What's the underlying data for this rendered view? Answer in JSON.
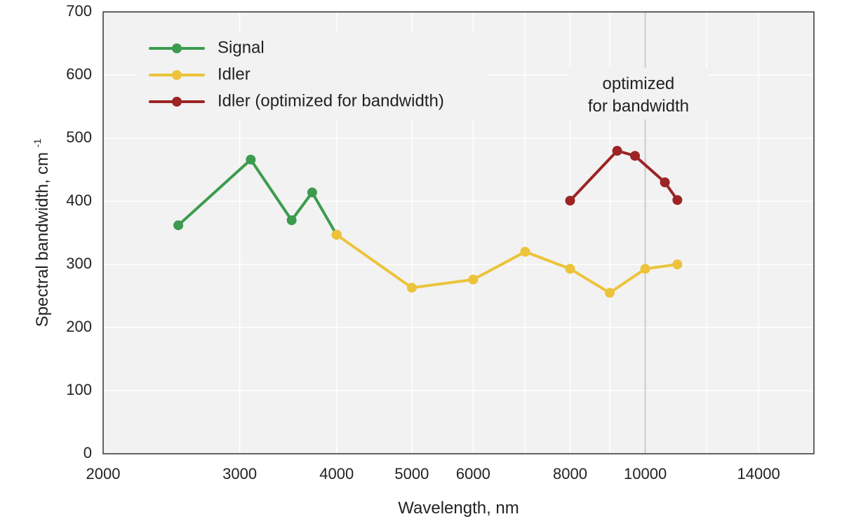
{
  "chart_data": {
    "type": "line",
    "xscale": "log",
    "xlabel": "Wavelength, nm",
    "ylabel_main": "Spectral bandwidth, cm",
    "ylabel_sup": "-1",
    "xlim": [
      2000,
      16500
    ],
    "ylim": [
      0,
      700
    ],
    "x_ticks": [
      2000,
      3000,
      4000,
      5000,
      6000,
      8000,
      10000,
      14000
    ],
    "x_tick_labels": [
      "2000",
      "3000",
      "4000",
      "5000",
      "6000",
      "8000",
      "10000",
      "14000"
    ],
    "x_gridlines": [
      3000,
      4000,
      5000,
      6000,
      7000,
      8000,
      9000,
      10000,
      12000,
      14000
    ],
    "x_major_gridline": 10000,
    "y_ticks": [
      0,
      100,
      200,
      300,
      400,
      500,
      600,
      700
    ],
    "y_tick_labels": [
      "0",
      "100",
      "200",
      "300",
      "400",
      "500",
      "600",
      "700"
    ],
    "grid": true,
    "legend_position": "top-left",
    "series": [
      {
        "name": "Signal",
        "color": "#3c9b4e",
        "x": [
          2500,
          3100,
          3500,
          3720,
          4000
        ],
        "y": [
          362,
          466,
          370,
          414,
          347
        ]
      },
      {
        "name": "Idler",
        "color": "#ecc33a",
        "x": [
          4000,
          5000,
          6000,
          7000,
          8000,
          9000,
          10000,
          11000
        ],
        "y": [
          347,
          263,
          276,
          320,
          293,
          255,
          293,
          300
        ]
      },
      {
        "name": "Idler (optimized for bandwidth)",
        "color": "#9c2424",
        "x": [
          8000,
          9200,
          9700,
          10600,
          11000
        ],
        "y": [
          401,
          480,
          472,
          430,
          402
        ]
      }
    ],
    "annotations": [
      {
        "lines": [
          "optimized",
          "for bandwidth"
        ],
        "x": 9800,
        "y": 585
      }
    ]
  },
  "colors": {
    "plot_background": "#f2f2f2",
    "gridline": "#ffffff",
    "major_gridline": "#cccccc",
    "axis": "#333333"
  }
}
